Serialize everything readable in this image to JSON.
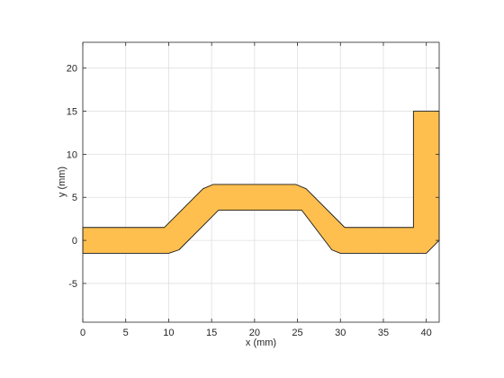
{
  "chart_data": {
    "type": "area",
    "xlabel": "x (mm)",
    "ylabel": "y (mm)",
    "xlim": [
      0,
      41.5
    ],
    "ylim": [
      -9.5,
      23
    ],
    "xticks": [
      0,
      5,
      10,
      15,
      20,
      25,
      30,
      35,
      40
    ],
    "yticks": [
      -5,
      0,
      5,
      10,
      15,
      20
    ],
    "grid": true,
    "fill_color": "#ffbf4f",
    "edge_color": "#1a1a1a",
    "series": [
      {
        "points": [
          [
            0,
            1.5
          ],
          [
            9.5,
            1.5
          ],
          [
            14,
            6.0
          ],
          [
            15.2,
            6.5
          ],
          [
            24.8,
            6.5
          ],
          [
            26,
            6.0
          ],
          [
            30.5,
            1.5
          ],
          [
            38.5,
            1.5
          ],
          [
            38.5,
            15
          ],
          [
            41.5,
            15
          ],
          [
            41.5,
            0
          ],
          [
            40,
            -1.5
          ],
          [
            30,
            -1.5
          ],
          [
            29,
            -1.1
          ],
          [
            25.5,
            3.5
          ],
          [
            15.8,
            3.5
          ],
          [
            11.2,
            -1.1
          ],
          [
            10,
            -1.5
          ],
          [
            0,
            -1.5
          ]
        ]
      }
    ]
  }
}
